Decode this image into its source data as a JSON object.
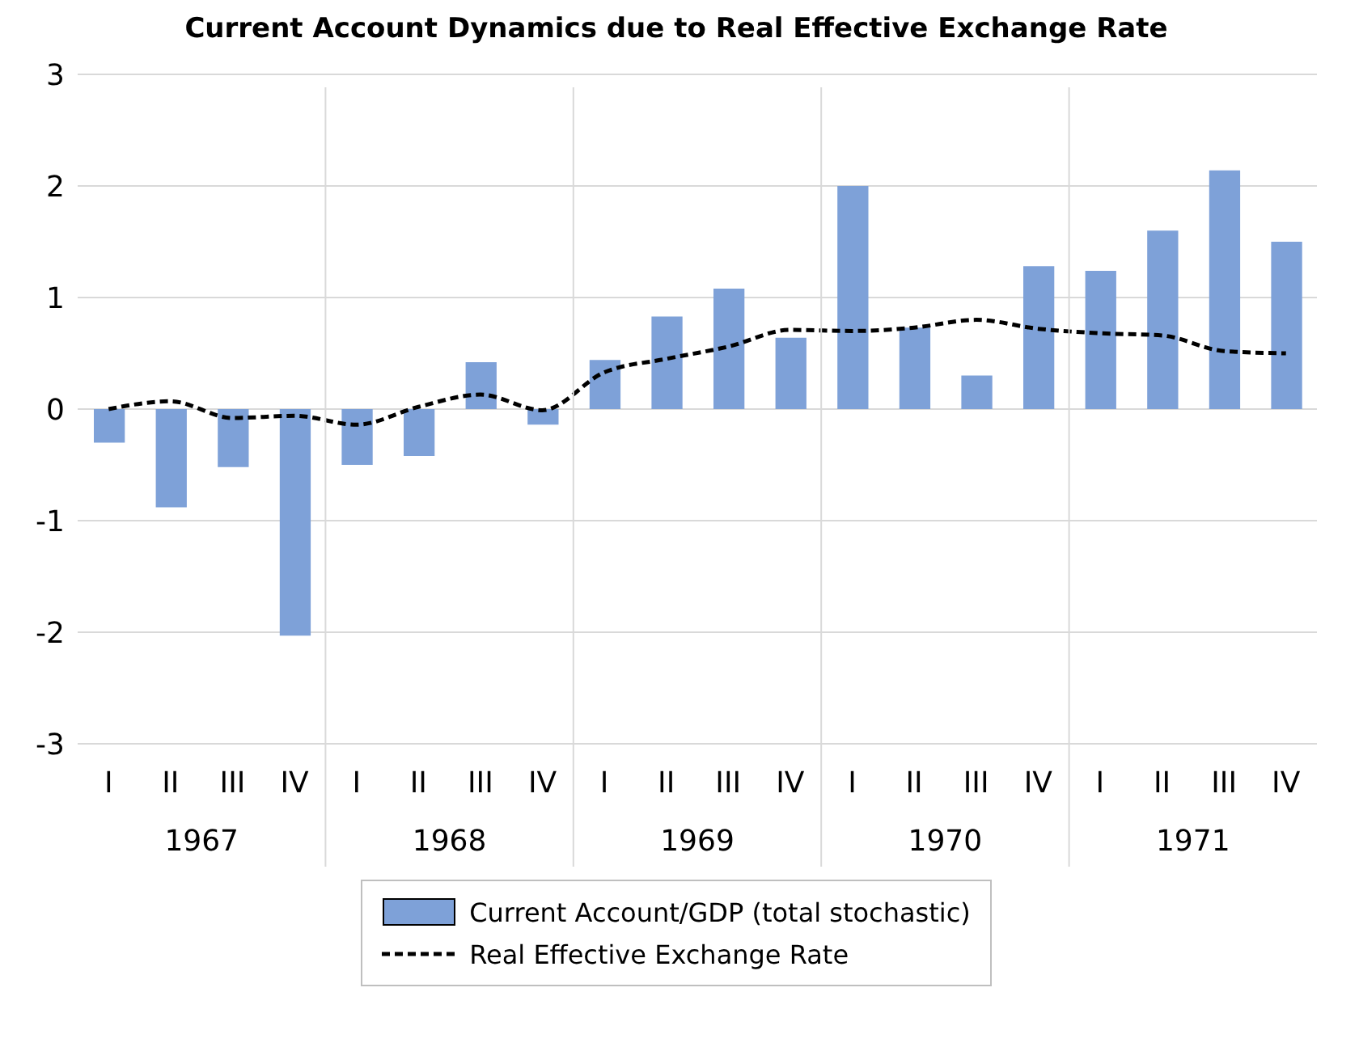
{
  "chart_data": {
    "type": "bar",
    "title": "Current Account Dynamics due to Real Effective Exchange Rate",
    "categories": [
      "I",
      "II",
      "III",
      "IV",
      "I",
      "II",
      "III",
      "IV",
      "I",
      "II",
      "III",
      "IV",
      "I",
      "II",
      "III",
      "IV",
      "I",
      "II",
      "III",
      "IV"
    ],
    "annotations": [
      "1967",
      "1968",
      "1969",
      "1970",
      "1971"
    ],
    "series": [
      {
        "name": "Current Account/GDP (total stochastic)",
        "color": "#7ea1d8",
        "values": [
          -0.3,
          -0.88,
          -0.52,
          -2.03,
          -0.5,
          -0.42,
          0.42,
          -0.14,
          0.44,
          0.83,
          1.08,
          0.64,
          2.0,
          0.73,
          0.3,
          1.28,
          1.24,
          1.6,
          2.14,
          1.5
        ]
      },
      {
        "name": "Real Effective Exchange Rate",
        "type": "line",
        "color": "#000000",
        "line_style": "dashed",
        "values": [
          0.0,
          0.07,
          -0.08,
          -0.06,
          -0.14,
          0.02,
          0.13,
          -0.01,
          0.33,
          0.45,
          0.56,
          0.71,
          0.7,
          0.73,
          0.8,
          0.72,
          0.68,
          0.66,
          0.52,
          0.5
        ]
      }
    ],
    "ylim": [
      -3,
      3
    ],
    "yticks": [
      -3,
      -2,
      -1,
      0,
      1,
      2,
      3
    ],
    "grid": "y",
    "legend": "bottom"
  }
}
